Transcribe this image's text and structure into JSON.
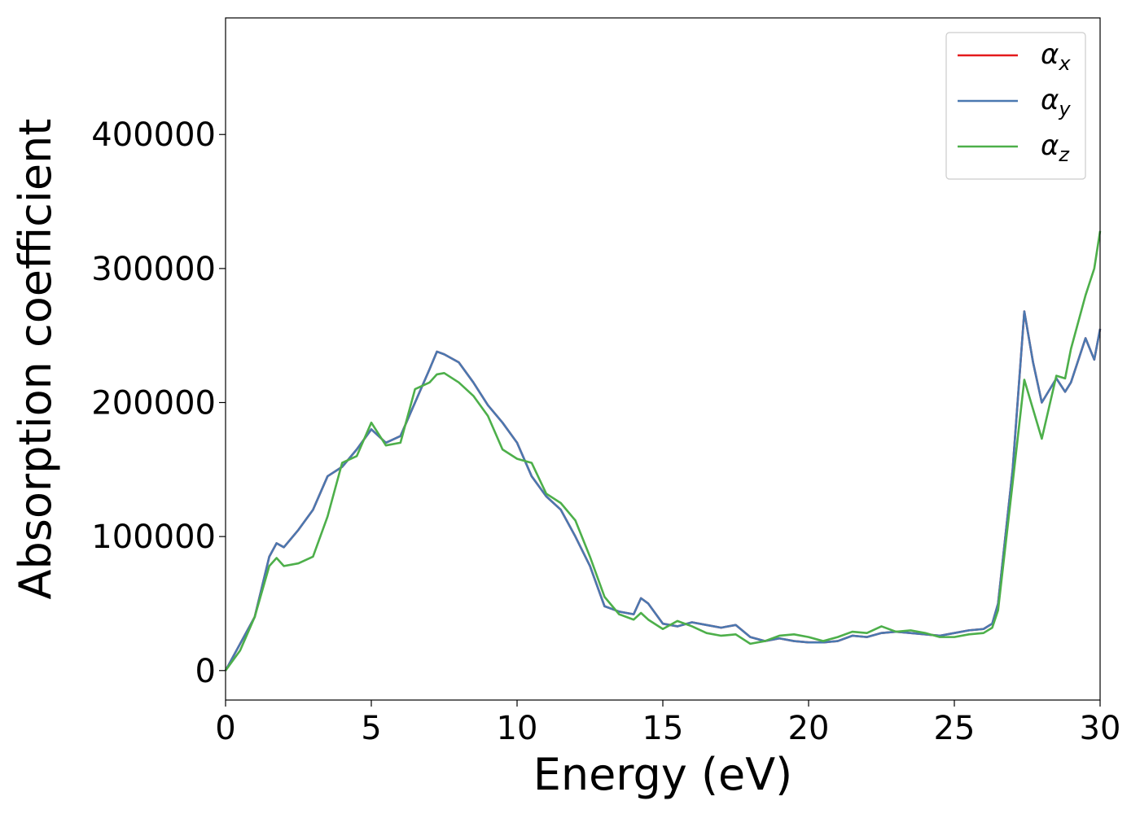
{
  "chart_data": {
    "type": "line",
    "xlabel": "Energy (eV)",
    "ylabel": "Absorption coefficient",
    "x": [
      0,
      0.5,
      1,
      1.5,
      1.75,
      2,
      2.5,
      3,
      3.5,
      4,
      4.5,
      5,
      5.5,
      6,
      6.5,
      7,
      7.25,
      7.5,
      8,
      8.5,
      9,
      9.5,
      10,
      10.5,
      11,
      11.5,
      12,
      12.5,
      13,
      13.5,
      14,
      14.25,
      14.5,
      15,
      15.5,
      16,
      16.5,
      17,
      17.5,
      18,
      18.5,
      19,
      19.5,
      20,
      20.5,
      21,
      21.5,
      22,
      22.5,
      23,
      23.5,
      24,
      24.5,
      25,
      25.5,
      26,
      26.3,
      26.5,
      27,
      27.4,
      27.7,
      28,
      28.5,
      28.8,
      29,
      29.5,
      29.8,
      30
    ],
    "series": [
      {
        "name": "αx",
        "color": "#e41a1c",
        "values": [
          0,
          20000,
          40000,
          85000,
          95000,
          92000,
          105000,
          120000,
          145000,
          152000,
          165000,
          180000,
          170000,
          175000,
          200000,
          225000,
          238000,
          236000,
          230000,
          215000,
          198000,
          185000,
          170000,
          145000,
          130000,
          120000,
          100000,
          78000,
          48000,
          44000,
          42000,
          54000,
          50000,
          35000,
          33000,
          36000,
          34000,
          32000,
          34000,
          25000,
          22000,
          24000,
          22000,
          21000,
          21000,
          22000,
          26000,
          25000,
          28000,
          29000,
          28000,
          27000,
          26000,
          28000,
          30000,
          31000,
          35000,
          50000,
          150000,
          268000,
          230000,
          200000,
          218000,
          208000,
          215000,
          248000,
          232000,
          255000
        ]
      },
      {
        "name": "αy",
        "color": "#4a78b0",
        "values": [
          0,
          20000,
          40000,
          85000,
          95000,
          92000,
          105000,
          120000,
          145000,
          152000,
          165000,
          180000,
          170000,
          175000,
          200000,
          225000,
          238000,
          236000,
          230000,
          215000,
          198000,
          185000,
          170000,
          145000,
          130000,
          120000,
          100000,
          78000,
          48000,
          44000,
          42000,
          54000,
          50000,
          35000,
          33000,
          36000,
          34000,
          32000,
          34000,
          25000,
          22000,
          24000,
          22000,
          21000,
          21000,
          22000,
          26000,
          25000,
          28000,
          29000,
          28000,
          27000,
          26000,
          28000,
          30000,
          31000,
          35000,
          50000,
          150000,
          268000,
          230000,
          200000,
          218000,
          208000,
          215000,
          248000,
          232000,
          255000
        ]
      },
      {
        "name": "αz",
        "color": "#4daf4a",
        "values": [
          0,
          15000,
          40000,
          78000,
          84000,
          78000,
          80000,
          85000,
          115000,
          155000,
          160000,
          185000,
          168000,
          170000,
          210000,
          215000,
          221000,
          222000,
          215000,
          205000,
          190000,
          165000,
          158000,
          155000,
          132000,
          125000,
          112000,
          85000,
          55000,
          42000,
          38000,
          43000,
          38000,
          31000,
          37000,
          33000,
          28000,
          26000,
          27000,
          20000,
          22000,
          26000,
          27000,
          25000,
          22000,
          25000,
          29000,
          28000,
          33000,
          29000,
          30000,
          28000,
          25000,
          25000,
          27000,
          28000,
          32000,
          45000,
          140000,
          217000,
          195000,
          173000,
          220000,
          218000,
          240000,
          280000,
          300000,
          328000
        ]
      }
    ],
    "xlim": [
      0,
      30
    ],
    "xticks": [
      0,
      5,
      10,
      15,
      20,
      25,
      30
    ],
    "ylim": [
      -22000,
      487000
    ],
    "yticks": [
      0,
      100000,
      200000,
      300000,
      400000
    ],
    "grid": false,
    "legend": "upper right"
  }
}
